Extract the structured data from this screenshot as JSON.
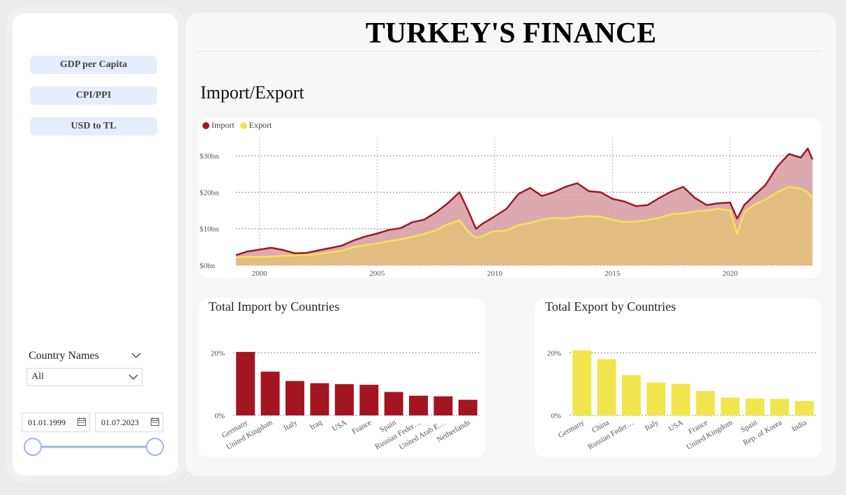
{
  "sidebar": {
    "buttons": [
      {
        "label": "GDP per Capita"
      },
      {
        "label": "CPI/PPI"
      },
      {
        "label": "USD to TL"
      }
    ],
    "country_slicer": {
      "title": "Country Names",
      "value": "All"
    },
    "date_range": {
      "start": "01.01.1999",
      "end": "01.07.2023"
    }
  },
  "header": {
    "title": "TURKEY'S FINANCE",
    "section": "Import/Export"
  },
  "colors": {
    "import": "#a31621",
    "export": "#f2e64e",
    "import_fill": "#d9a0a8",
    "export_fill": "#e3bd80"
  },
  "chart_data": [
    {
      "type": "area",
      "legend": [
        "Import",
        "Export"
      ],
      "y_ticks": [
        "$0bn",
        "$10bn",
        "$20bn",
        "$30bn"
      ],
      "x_ticks": [
        "2000",
        "2005",
        "2010",
        "2015",
        "2020"
      ],
      "x_range": [
        1999,
        2023.5
      ],
      "ylim": [
        0,
        35
      ],
      "series": [
        {
          "name": "Import",
          "points": [
            [
              1999.0,
              2.8
            ],
            [
              1999.5,
              3.8
            ],
            [
              2000.0,
              4.3
            ],
            [
              2000.5,
              4.8
            ],
            [
              2001.0,
              4.2
            ],
            [
              2001.5,
              3.3
            ],
            [
              2002.0,
              3.4
            ],
            [
              2002.5,
              4.1
            ],
            [
              2003.0,
              4.7
            ],
            [
              2003.5,
              5.4
            ],
            [
              2004.0,
              6.8
            ],
            [
              2004.5,
              7.9
            ],
            [
              2005.0,
              8.7
            ],
            [
              2005.5,
              9.7
            ],
            [
              2006.0,
              10.2
            ],
            [
              2006.5,
              11.8
            ],
            [
              2007.0,
              12.5
            ],
            [
              2007.5,
              14.5
            ],
            [
              2008.0,
              17.0
            ],
            [
              2008.5,
              20.0
            ],
            [
              2008.9,
              14.5
            ],
            [
              2009.2,
              10.0
            ],
            [
              2009.5,
              11.5
            ],
            [
              2009.9,
              13.0
            ],
            [
              2010.5,
              15.5
            ],
            [
              2011.0,
              19.5
            ],
            [
              2011.5,
              21.2
            ],
            [
              2012.0,
              19.0
            ],
            [
              2012.5,
              20.0
            ],
            [
              2013.0,
              21.5
            ],
            [
              2013.5,
              22.5
            ],
            [
              2014.0,
              20.3
            ],
            [
              2014.5,
              20.0
            ],
            [
              2015.0,
              18.2
            ],
            [
              2015.5,
              17.5
            ],
            [
              2016.0,
              16.2
            ],
            [
              2016.5,
              16.5
            ],
            [
              2017.0,
              18.5
            ],
            [
              2017.5,
              20.2
            ],
            [
              2018.0,
              21.5
            ],
            [
              2018.5,
              18.5
            ],
            [
              2019.0,
              16.5
            ],
            [
              2019.5,
              17.0
            ],
            [
              2020.0,
              17.2
            ],
            [
              2020.3,
              12.8
            ],
            [
              2020.6,
              16.5
            ],
            [
              2021.0,
              19.0
            ],
            [
              2021.5,
              22.0
            ],
            [
              2022.0,
              27.0
            ],
            [
              2022.5,
              30.5
            ],
            [
              2023.0,
              29.5
            ],
            [
              2023.3,
              32.0
            ],
            [
              2023.5,
              29.0
            ]
          ]
        },
        {
          "name": "Export",
          "points": [
            [
              1999.0,
              2.2
            ],
            [
              1999.5,
              2.3
            ],
            [
              2000.0,
              2.3
            ],
            [
              2000.5,
              2.4
            ],
            [
              2001.0,
              2.6
            ],
            [
              2001.5,
              2.7
            ],
            [
              2002.0,
              2.8
            ],
            [
              2002.5,
              3.1
            ],
            [
              2003.0,
              3.6
            ],
            [
              2003.5,
              4.0
            ],
            [
              2004.0,
              5.0
            ],
            [
              2004.5,
              5.5
            ],
            [
              2005.0,
              6.0
            ],
            [
              2005.5,
              6.6
            ],
            [
              2006.0,
              7.1
            ],
            [
              2006.5,
              7.8
            ],
            [
              2007.0,
              8.6
            ],
            [
              2007.5,
              9.6
            ],
            [
              2008.0,
              11.2
            ],
            [
              2008.5,
              12.3
            ],
            [
              2008.9,
              9.0
            ],
            [
              2009.2,
              7.5
            ],
            [
              2009.5,
              8.0
            ],
            [
              2009.9,
              9.3
            ],
            [
              2010.5,
              9.5
            ],
            [
              2011.0,
              11.0
            ],
            [
              2011.5,
              11.6
            ],
            [
              2012.0,
              12.5
            ],
            [
              2012.5,
              13.0
            ],
            [
              2013.0,
              12.8
            ],
            [
              2013.5,
              13.3
            ],
            [
              2014.0,
              13.5
            ],
            [
              2014.5,
              13.3
            ],
            [
              2015.0,
              12.5
            ],
            [
              2015.5,
              11.8
            ],
            [
              2016.0,
              12.0
            ],
            [
              2016.5,
              12.4
            ],
            [
              2017.0,
              13.0
            ],
            [
              2017.5,
              14.0
            ],
            [
              2018.0,
              14.2
            ],
            [
              2018.5,
              14.7
            ],
            [
              2019.0,
              15.0
            ],
            [
              2019.5,
              15.5
            ],
            [
              2020.0,
              15.0
            ],
            [
              2020.3,
              8.6
            ],
            [
              2020.6,
              14.5
            ],
            [
              2021.0,
              16.5
            ],
            [
              2021.5,
              18.0
            ],
            [
              2022.0,
              20.0
            ],
            [
              2022.5,
              21.5
            ],
            [
              2023.0,
              21.0
            ],
            [
              2023.3,
              20.0
            ],
            [
              2023.5,
              18.5
            ]
          ]
        }
      ]
    },
    {
      "type": "bar",
      "title": "Total Import by Countries",
      "y_ticks": [
        "0%",
        "20%"
      ],
      "ylim": [
        0,
        25
      ],
      "categories": [
        "Germany",
        "United Kingdom",
        "Italy",
        "Iraq",
        "USA",
        "France",
        "Spain",
        "Russian Feder…",
        "United Arab E…",
        "Netherlands"
      ],
      "values": [
        20.3,
        14.0,
        11.0,
        10.3,
        10.0,
        9.8,
        7.5,
        6.3,
        6.1,
        5.0
      ]
    },
    {
      "type": "bar",
      "title": "Total Export by Countries",
      "y_ticks": [
        "0%",
        "20%"
      ],
      "ylim": [
        0,
        25
      ],
      "categories": [
        "Germany",
        "China",
        "Russian Feder…",
        "Italy",
        "USA",
        "France",
        "United Kingdom",
        "Spain",
        "Rep. of Korea",
        "India"
      ],
      "values": [
        20.8,
        18.0,
        12.9,
        10.5,
        10.1,
        7.8,
        5.7,
        5.4,
        5.3,
        4.6
      ]
    }
  ]
}
